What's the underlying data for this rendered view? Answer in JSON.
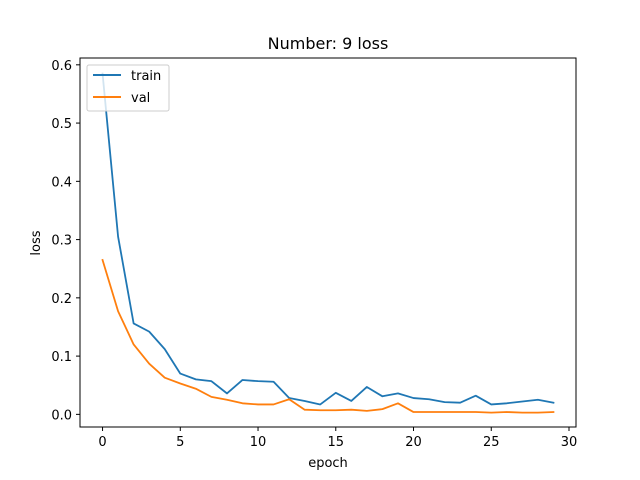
{
  "chart_data": {
    "type": "line",
    "title": "Number: 9 loss",
    "xlabel": "epoch",
    "ylabel": "loss",
    "xlim": [
      -1.45,
      30.45
    ],
    "ylim": [
      -0.0217,
      0.6117
    ],
    "xticks": [
      0,
      5,
      10,
      15,
      20,
      25,
      30
    ],
    "yticks": [
      0.0,
      0.1,
      0.2,
      0.3,
      0.4,
      0.5,
      0.6
    ],
    "xtick_labels": [
      "0",
      "5",
      "10",
      "15",
      "20",
      "25",
      "30"
    ],
    "ytick_labels": [
      "0.0",
      "0.1",
      "0.2",
      "0.3",
      "0.4",
      "0.5",
      "0.6"
    ],
    "grid": false,
    "legend_position": "upper-left",
    "x": [
      0,
      1,
      2,
      3,
      4,
      5,
      6,
      7,
      8,
      9,
      10,
      11,
      12,
      13,
      14,
      15,
      16,
      17,
      18,
      19,
      20,
      21,
      22,
      23,
      24,
      25,
      26,
      27,
      28,
      29
    ],
    "series": [
      {
        "name": "train",
        "color": "#1f77b4",
        "values": [
          0.585,
          0.305,
          0.156,
          0.142,
          0.112,
          0.07,
          0.06,
          0.057,
          0.036,
          0.059,
          0.057,
          0.056,
          0.028,
          0.023,
          0.017,
          0.037,
          0.023,
          0.047,
          0.031,
          0.036,
          0.028,
          0.026,
          0.021,
          0.02,
          0.032,
          0.017,
          0.019,
          0.022,
          0.025,
          0.02
        ]
      },
      {
        "name": "val",
        "color": "#ff7f0e",
        "values": [
          0.265,
          0.177,
          0.12,
          0.087,
          0.063,
          0.053,
          0.044,
          0.03,
          0.025,
          0.019,
          0.017,
          0.017,
          0.026,
          0.008,
          0.007,
          0.007,
          0.008,
          0.006,
          0.009,
          0.019,
          0.004,
          0.004,
          0.004,
          0.004,
          0.004,
          0.003,
          0.004,
          0.003,
          0.003,
          0.004
        ]
      }
    ]
  }
}
